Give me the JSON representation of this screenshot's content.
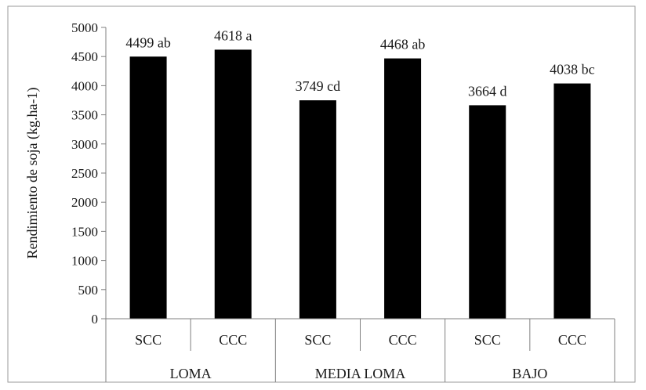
{
  "chart_data": {
    "type": "bar",
    "title": "",
    "ylabel": "Rendimiento de soja (kg.ha-1)",
    "xlabel": "",
    "ylim": [
      0,
      5000
    ],
    "yticks": [
      0,
      500,
      1000,
      1500,
      2000,
      2500,
      3000,
      3500,
      4000,
      4500,
      5000
    ],
    "grid": false,
    "legend": "none",
    "bar_color": "#000000",
    "groups": [
      "LOMA",
      "MEDIA LOMA",
      "BAJO"
    ],
    "categories": [
      "SCC",
      "CCC",
      "SCC",
      "CCC",
      "SCC",
      "CCC"
    ],
    "group_of_category": [
      0,
      0,
      1,
      1,
      2,
      2
    ],
    "values": [
      4499,
      4618,
      3749,
      4468,
      3664,
      4038
    ],
    "data_labels": [
      "4499 ab",
      "4618 a",
      "3749 cd",
      "4468 ab",
      "3664 d",
      "4038 bc"
    ]
  }
}
